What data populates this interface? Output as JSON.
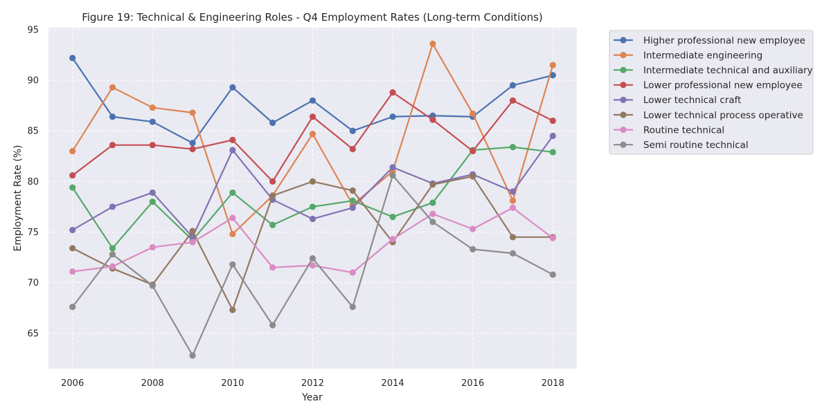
{
  "chart_data": {
    "type": "line",
    "title": "Figure 19: Technical & Engineering Roles - Q4 Employment Rates (Long-term Conditions)",
    "xlabel": "Year",
    "ylabel": "Employment Rate (%)",
    "xlim": [
      2005.4,
      2018.6
    ],
    "ylim": [
      61.5,
      95.2
    ],
    "xticks": [
      2006,
      2008,
      2010,
      2012,
      2014,
      2016,
      2018
    ],
    "yticks": [
      65,
      70,
      75,
      80,
      85,
      90,
      95
    ],
    "grid": true,
    "legend_position": "outside-right",
    "x": [
      2006,
      2007,
      2008,
      2009,
      2010,
      2011,
      2012,
      2013,
      2014,
      2015,
      2016,
      2017,
      2018
    ],
    "series": [
      {
        "name": "Higher professional new employee",
        "color": "#4c72b0",
        "values": [
          92.2,
          86.4,
          85.9,
          83.8,
          89.3,
          85.8,
          88.0,
          85.0,
          86.4,
          86.5,
          86.4,
          89.5,
          90.5
        ]
      },
      {
        "name": "Intermediate engineering",
        "color": "#dd8452",
        "values": [
          83.0,
          89.3,
          87.3,
          86.8,
          74.8,
          78.6,
          84.7,
          77.7,
          81.0,
          93.6,
          86.7,
          78.1,
          91.5
        ]
      },
      {
        "name": "Intermediate technical and auxiliary",
        "color": "#55a868",
        "values": [
          79.4,
          73.4,
          78.0,
          74.2,
          78.9,
          75.7,
          77.5,
          78.1,
          76.5,
          77.9,
          83.1,
          83.4,
          82.9
        ]
      },
      {
        "name": "Lower professional new employee",
        "color": "#c44e52",
        "values": [
          80.6,
          83.6,
          83.6,
          83.2,
          84.1,
          80.0,
          86.4,
          83.2,
          88.8,
          86.1,
          83.0,
          88.0,
          86.0
        ]
      },
      {
        "name": "Lower technical craft",
        "color": "#8172b3",
        "values": [
          75.2,
          77.5,
          78.9,
          74.5,
          83.1,
          78.2,
          76.3,
          77.4,
          81.4,
          79.8,
          80.7,
          79.0,
          84.5
        ]
      },
      {
        "name": "Lower technical process operative",
        "color": "#937860",
        "values": [
          73.4,
          71.4,
          69.8,
          75.1,
          67.3,
          78.6,
          80.0,
          79.1,
          74.0,
          79.7,
          80.5,
          74.5,
          74.5
        ]
      },
      {
        "name": "Routine technical",
        "color": "#da8bc3",
        "values": [
          71.1,
          71.6,
          73.5,
          74.0,
          76.4,
          71.5,
          71.7,
          71.0,
          74.3,
          76.8,
          75.3,
          77.4,
          74.4
        ]
      },
      {
        "name": "Semi routine technical",
        "color": "#8c8c8c",
        "values": [
          67.6,
          72.8,
          69.7,
          62.8,
          71.8,
          65.8,
          72.4,
          67.6,
          80.6,
          76.0,
          73.3,
          72.9,
          70.8
        ]
      }
    ]
  }
}
